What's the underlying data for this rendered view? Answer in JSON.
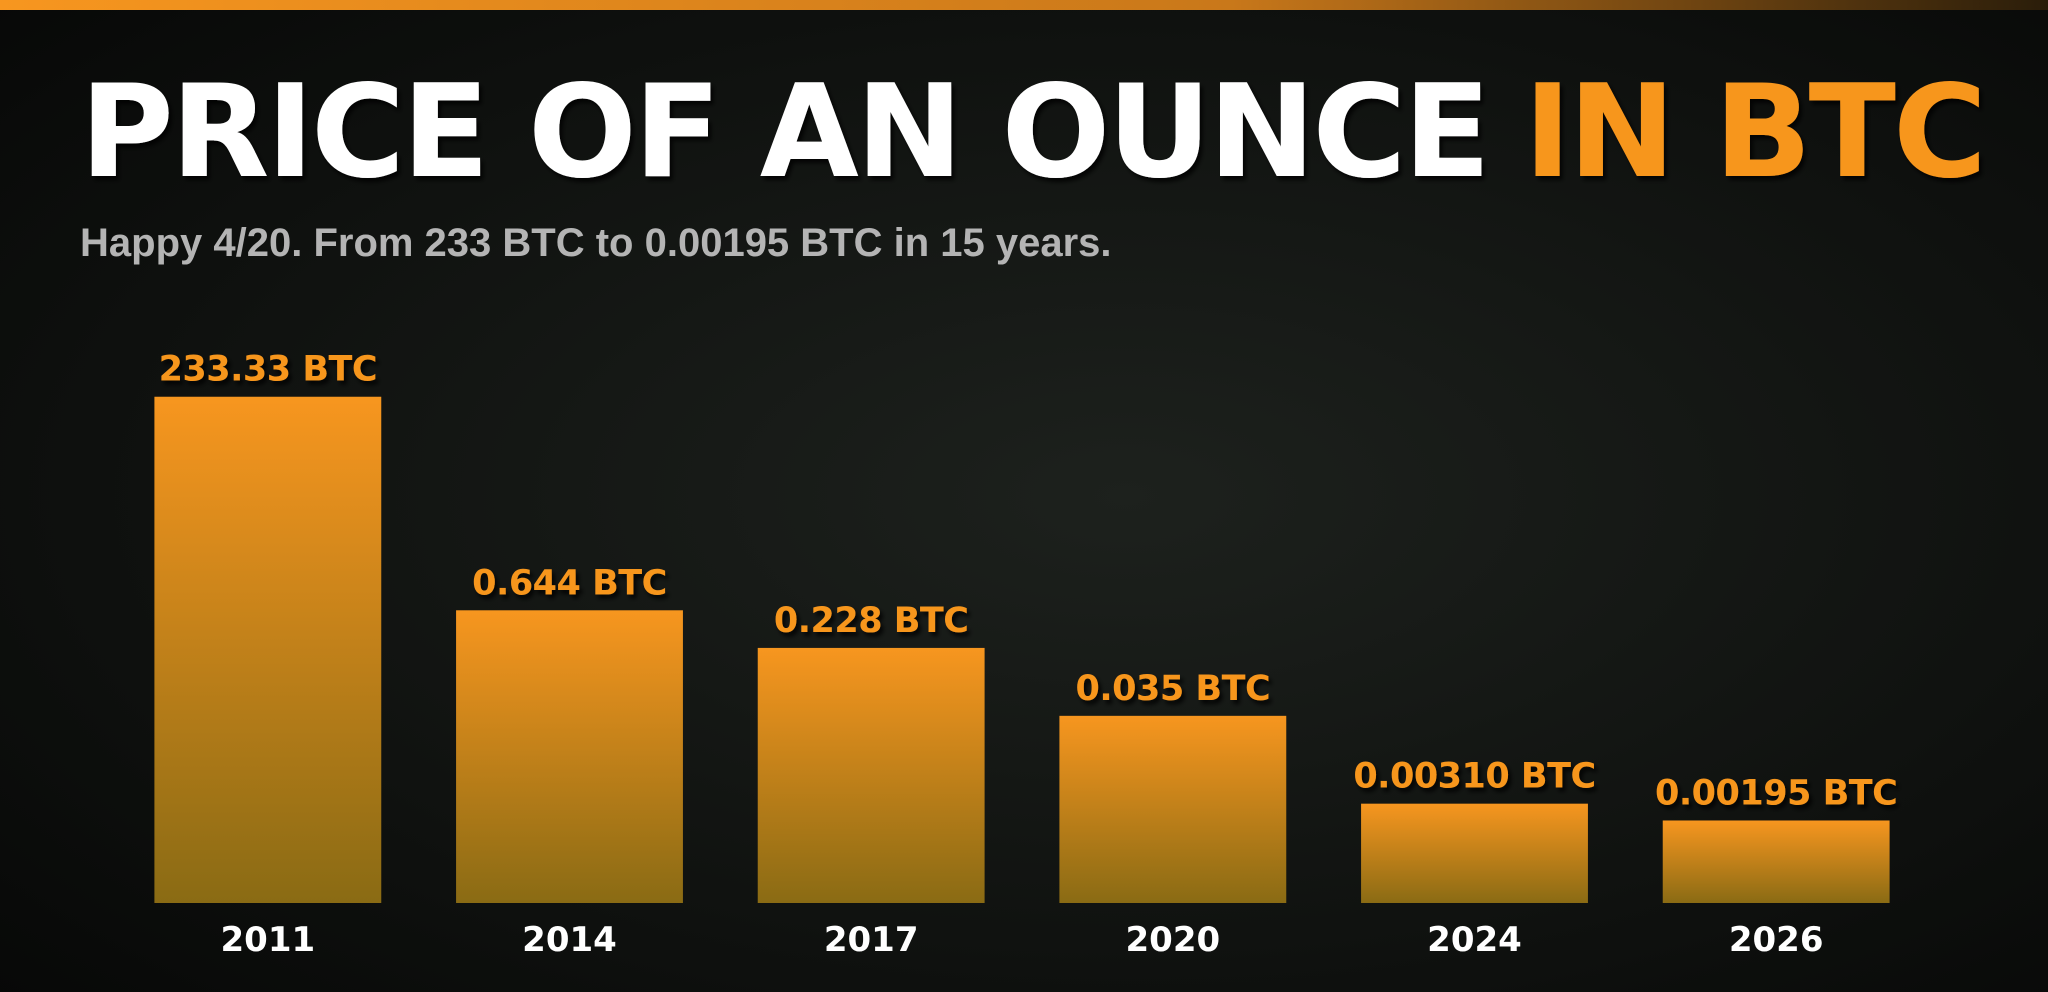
{
  "chart_data": {
    "type": "bar",
    "title": "PRICE OF AN OUNCE",
    "title_highlight": "IN BTC",
    "subtitle": "Happy 4/20. From 233 BTC to 0.00195 BTC in 15 years.",
    "categories": [
      "2011",
      "2014",
      "2017",
      "2020",
      "2024",
      "2026"
    ],
    "values": [
      233.33,
      0.644,
      0.228,
      0.035,
      0.0031,
      0.00195
    ],
    "value_labels": [
      "233.33 BTC",
      "0.644 BTC",
      "0.228 BTC",
      "0.035 BTC",
      "0.00310 BTC",
      "0.00195 BTC"
    ],
    "color": "#f7961f",
    "highlight_color": "#f7961f",
    "log_scale": true,
    "ylim": [
      0.0002,
      1000
    ]
  }
}
